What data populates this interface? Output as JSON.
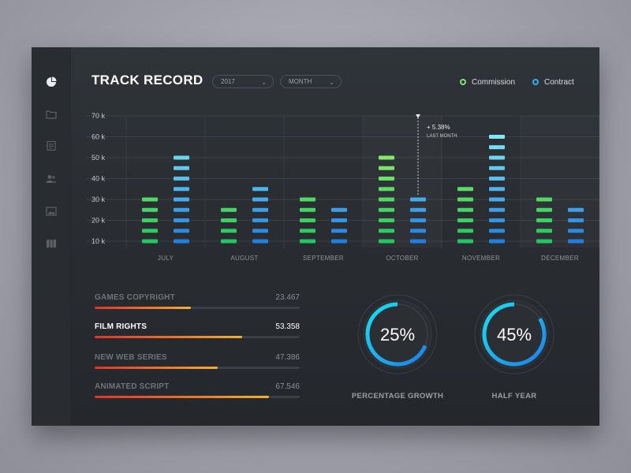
{
  "header": {
    "title": "TRACK RECORD",
    "year_select": "2017",
    "period_select": "MONTH"
  },
  "legend": [
    {
      "label": "Commission",
      "color": "#7ee36a"
    },
    {
      "label": "Contract",
      "color": "#2fb0f0"
    }
  ],
  "sidebar": {
    "icons": [
      "pie-chart-icon",
      "folder-icon",
      "document-icon",
      "users-icon",
      "image-icon",
      "map-icon"
    ]
  },
  "chart_data": {
    "type": "bar",
    "categories": [
      "JULY",
      "AUGUST",
      "SEPTEMBER",
      "OCTOBER",
      "NOVEMBER",
      "DECEMBER"
    ],
    "series": [
      {
        "name": "Commission",
        "values": [
          30,
          25,
          30,
          50,
          35,
          30
        ]
      },
      {
        "name": "Contract",
        "values": [
          50,
          35,
          25,
          30,
          60,
          25
        ]
      }
    ],
    "ylim": [
      10,
      70
    ],
    "yticks": [
      10,
      20,
      30,
      40,
      50,
      60,
      70
    ],
    "ytick_labels": [
      "10 k",
      "20 k",
      "30 k",
      "40 k",
      "50 k",
      "60 k",
      "70 k"
    ],
    "annotation": {
      "category": "OCTOBER",
      "value": "+ 5.38%",
      "sub": "LAST MONTH"
    },
    "colors": {
      "commission_low": "#20c860",
      "commission_high": "#a0f06c",
      "contract_low": "#1f7fe0",
      "contract_high": "#7fe8f8"
    }
  },
  "progress": [
    {
      "label": "GAMES COPYRIGHT",
      "value": "23.467",
      "fraction": 0.47,
      "active": false
    },
    {
      "label": "FILM RIGHTS",
      "value": "53.358",
      "fraction": 0.72,
      "active": true
    },
    {
      "label": "NEW WEB SERIES",
      "value": "47.386",
      "fraction": 0.6,
      "active": false
    },
    {
      "label": "ANIMATED SCRIPT",
      "value": "67.546",
      "fraction": 0.85,
      "active": false
    }
  ],
  "gauges": [
    {
      "value": "25%",
      "fraction": 0.25,
      "caption": "PERCENTAGE GROWTH"
    },
    {
      "value": "45%",
      "fraction": 0.45,
      "caption": "HALF YEAR"
    }
  ]
}
